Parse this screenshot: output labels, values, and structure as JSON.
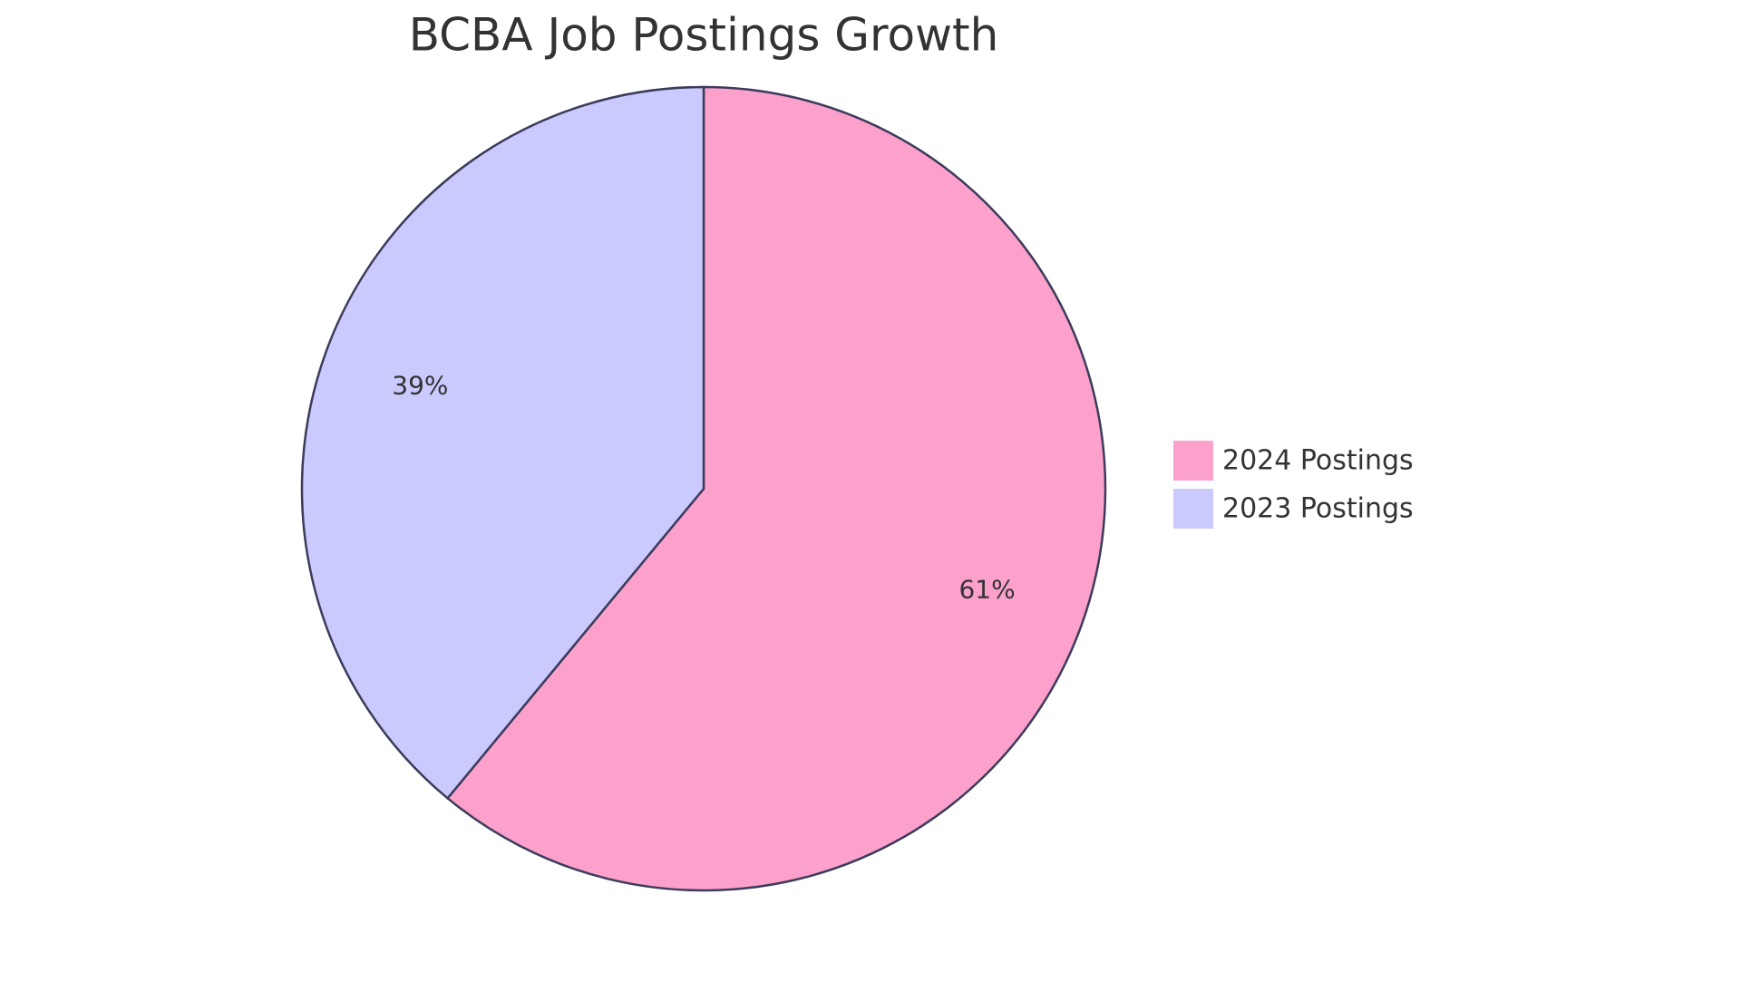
{
  "chart_data": {
    "type": "pie",
    "title": "BCBA Job Postings Growth",
    "categories": [
      "2024 Postings",
      "2023 Postings"
    ],
    "values": [
      61,
      39
    ],
    "value_labels": [
      "61%",
      "39%"
    ],
    "colors": [
      "#fca1cc",
      "#cacaff"
    ],
    "legend": "right"
  }
}
